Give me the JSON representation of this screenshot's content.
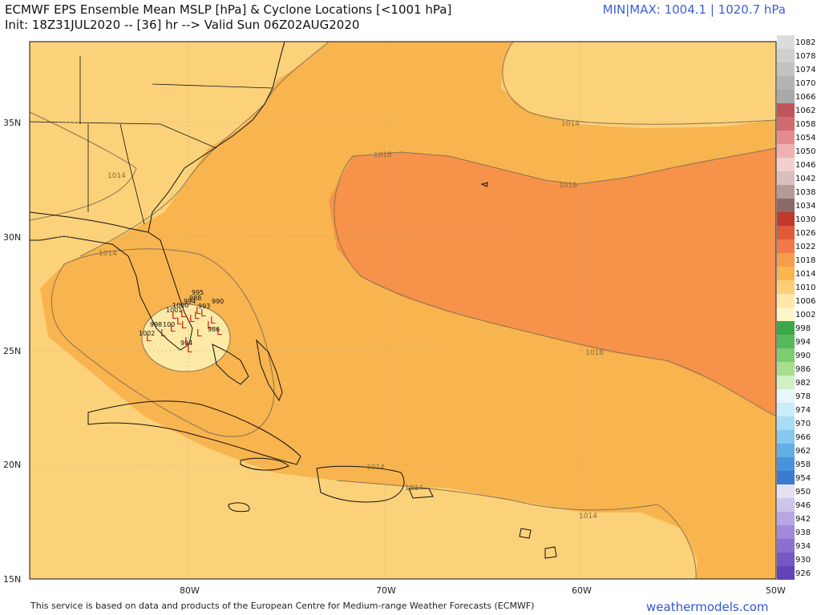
{
  "header": {
    "title_line1": "ECMWF EPS Ensemble Mean MSLP [hPa] & Cyclone Locations [<1001 hPa]",
    "title_line2": "Init: 18Z31JUL2020 -- [36] hr --> Valid Sun 06Z02AUG2020",
    "minmax": "MIN|MAX: 1004.1 | 1020.7 hPa"
  },
  "footer": {
    "attribution": "This service is based on data and products of the European Centre for Medium-range Weather Forecasts (ECMWF)",
    "brand": "weathermodels.com"
  },
  "axes": {
    "lat_ticks": [
      "35N",
      "30N",
      "25N",
      "20N",
      "15N"
    ],
    "lon_ticks": [
      "80W",
      "70W",
      "60W",
      "50W"
    ]
  },
  "colorbar": {
    "levels": [
      {
        "label": "1082",
        "color": "#dcdcdc"
      },
      {
        "label": "1078",
        "color": "#d0d0d0"
      },
      {
        "label": "1074",
        "color": "#c2c2c2"
      },
      {
        "label": "1070",
        "color": "#b3b3b3"
      },
      {
        "label": "1066",
        "color": "#a9a9a9"
      },
      {
        "label": "1062",
        "color": "#c0545a"
      },
      {
        "label": "1058",
        "color": "#d06a6f"
      },
      {
        "label": "1054",
        "color": "#e48c8f"
      },
      {
        "label": "1050",
        "color": "#efb1b2"
      },
      {
        "label": "1046",
        "color": "#f4cfcf"
      },
      {
        "label": "1042",
        "color": "#d8c0c0"
      },
      {
        "label": "1038",
        "color": "#b69a98"
      },
      {
        "label": "1034",
        "color": "#8c6a66"
      },
      {
        "label": "1030",
        "color": "#c0392b"
      },
      {
        "label": "1026",
        "color": "#e05a3a"
      },
      {
        "label": "1022",
        "color": "#f07a4a"
      },
      {
        "label": "1018",
        "color": "#f59e4a"
      },
      {
        "label": "1014",
        "color": "#f8b550"
      },
      {
        "label": "1010",
        "color": "#fbcf76"
      },
      {
        "label": "1006",
        "color": "#fde8a8"
      },
      {
        "label": "1002",
        "color": "#fdf5c8"
      },
      {
        "label": "998",
        "color": "#3aa846"
      },
      {
        "label": "994",
        "color": "#56b85a"
      },
      {
        "label": "990",
        "color": "#7dcc6e"
      },
      {
        "label": "986",
        "color": "#a7df8f"
      },
      {
        "label": "982",
        "color": "#d2f0c4"
      },
      {
        "label": "978",
        "color": "#e6f6fb"
      },
      {
        "label": "974",
        "color": "#c9ecf7"
      },
      {
        "label": "970",
        "color": "#a9ddf3"
      },
      {
        "label": "966",
        "color": "#86c8ee"
      },
      {
        "label": "962",
        "color": "#64aee6"
      },
      {
        "label": "958",
        "color": "#4a93dc"
      },
      {
        "label": "954",
        "color": "#3a7bd0"
      },
      {
        "label": "950",
        "color": "#e6e0f4"
      },
      {
        "label": "946",
        "color": "#cfc4ec"
      },
      {
        "label": "942",
        "color": "#b7a6e3"
      },
      {
        "label": "938",
        "color": "#a08ad9"
      },
      {
        "label": "934",
        "color": "#8a70cf"
      },
      {
        "label": "930",
        "color": "#7558c4"
      },
      {
        "label": "926",
        "color": "#6244b8"
      }
    ]
  },
  "contour_labels": [
    "1014",
    "1018",
    "1014",
    "1014",
    "1018",
    "1018",
    "1014",
    "1014",
    "1014"
  ],
  "cluster_labels": [
    "995",
    "988",
    "994",
    "990",
    "993",
    "986",
    "1001",
    "1000",
    "998",
    "1002",
    "100",
    "994"
  ],
  "cyclone_marker": "L",
  "colors": {
    "fill_1010": "#fbd27a",
    "fill_1014": "#f9b94f",
    "fill_1018": "#f6924a",
    "fill_1006": "#fdeaa6",
    "land_line": "#111111",
    "contour": "#8a7355"
  }
}
